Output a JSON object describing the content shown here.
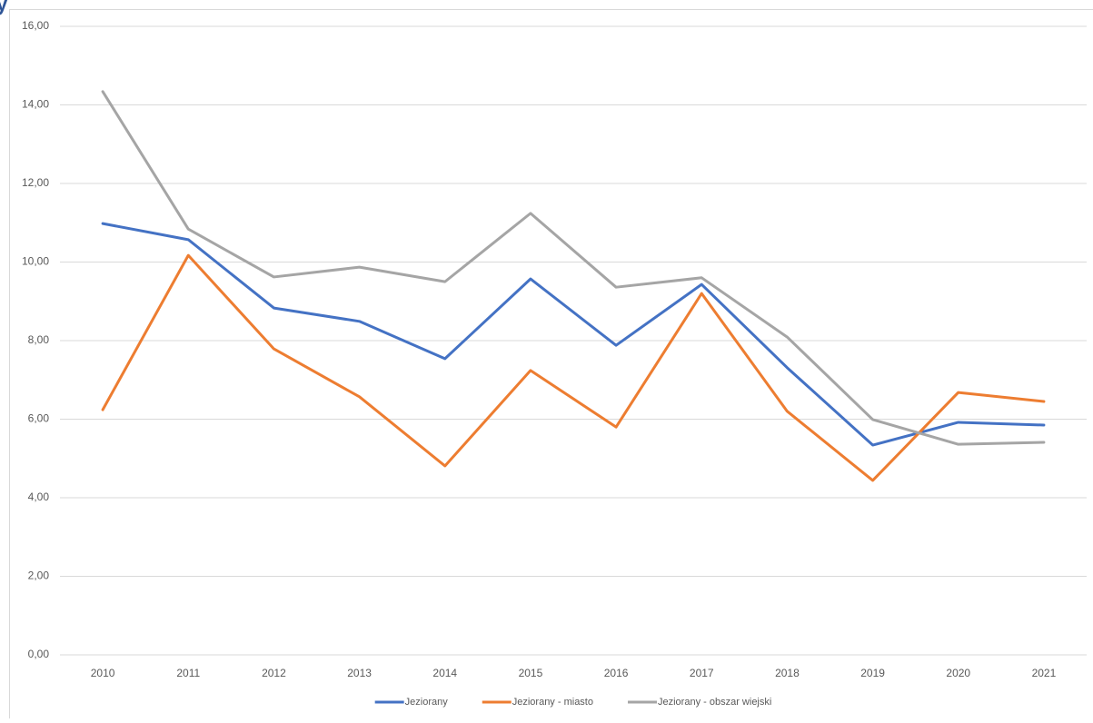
{
  "heading": "y",
  "chart_data": {
    "type": "line",
    "categories": [
      "2010",
      "2011",
      "2012",
      "2013",
      "2014",
      "2015",
      "2016",
      "2017",
      "2018",
      "2019",
      "2020",
      "2021"
    ],
    "series": [
      {
        "name": "Jeziorany",
        "color": "#4472c4",
        "values": [
          10.98,
          10.57,
          8.83,
          8.49,
          7.54,
          9.57,
          7.88,
          9.43,
          7.31,
          5.34,
          5.92,
          5.85
        ]
      },
      {
        "name": "Jeziorany - miasto",
        "color": "#ed7d31",
        "values": [
          6.24,
          10.17,
          7.79,
          6.57,
          4.81,
          7.24,
          5.8,
          9.2,
          6.2,
          4.44,
          6.68,
          6.45
        ]
      },
      {
        "name": "Jeziorany - obszar wiejski",
        "color": "#a5a5a5",
        "values": [
          14.34,
          10.84,
          9.62,
          9.87,
          9.5,
          11.24,
          9.36,
          9.6,
          8.09,
          5.99,
          5.36,
          5.41
        ]
      }
    ],
    "ylim": [
      0,
      16
    ],
    "yticks": [
      {
        "value": 0,
        "label": "0,00"
      },
      {
        "value": 2,
        "label": "2,00"
      },
      {
        "value": 4,
        "label": "4,00"
      },
      {
        "value": 6,
        "label": "6,00"
      },
      {
        "value": 8,
        "label": "8,00"
      },
      {
        "value": 10,
        "label": "10,00"
      },
      {
        "value": 12,
        "label": "12,00"
      },
      {
        "value": 14,
        "label": "14,00"
      },
      {
        "value": 16,
        "label": "16,00"
      }
    ],
    "grid": true,
    "legend": "bottom"
  }
}
